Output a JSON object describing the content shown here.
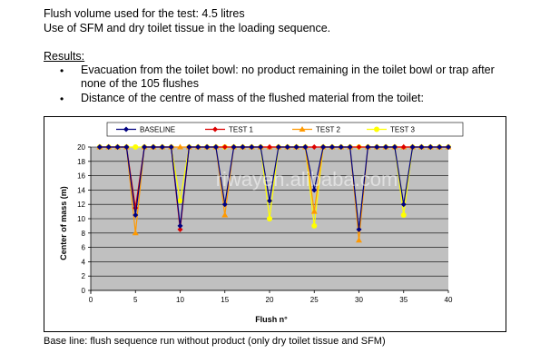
{
  "intro": {
    "line1": "Flush volume used for the test: 4.5 litres",
    "line2": "Use of SFM and dry toilet tissue in the loading sequence."
  },
  "results": {
    "heading": "Results:",
    "bullet_glyph": "•",
    "bullet1_line1": "Evacuation from the toilet bowl: no product remaining in the toilet bowl or trap after",
    "bullet1_line2": "none of the 105 flushes",
    "bullet2": "Distance of the centre of mass of the flushed material from the toilet:"
  },
  "caption": "Base line: flush sequence run without product (only dry toilet tissue and SFM)",
  "watermark": "riwayen.alibaba.com",
  "colors": {
    "plot_bg": "#c0c0c0",
    "baseline": "#000080",
    "test1": "#dd0000",
    "test2": "#ff9900",
    "test3": "#ffff00"
  },
  "chart_data": {
    "type": "line",
    "xlabel": "Flush n°",
    "ylabel": "Center of mass (m)",
    "xlim": [
      0,
      40
    ],
    "ylim": [
      0,
      20
    ],
    "x_ticks": [
      0,
      5,
      10,
      15,
      20,
      25,
      30,
      35,
      40
    ],
    "y_ticks": [
      0,
      2,
      4,
      6,
      8,
      10,
      12,
      14,
      16,
      18,
      20
    ],
    "grid": true,
    "legend_position": "top",
    "series": [
      {
        "name": "BASELINE",
        "color": "#000080",
        "marker": "diamond",
        "x": [
          1,
          2,
          3,
          4,
          5,
          6,
          7,
          8,
          9,
          10,
          11,
          12,
          13,
          14,
          15,
          16,
          17,
          18,
          19,
          20,
          21,
          22,
          23,
          24,
          25,
          26,
          27,
          28,
          29,
          30,
          31,
          32,
          33,
          34,
          35,
          36,
          37,
          38,
          39,
          40
        ],
        "y": [
          20,
          20,
          20,
          20,
          10.5,
          20,
          20,
          20,
          20,
          9,
          20,
          20,
          20,
          20,
          12,
          20,
          20,
          20,
          20,
          12.5,
          20,
          20,
          20,
          20,
          14,
          20,
          20,
          20,
          20,
          8.5,
          20,
          20,
          20,
          20,
          12,
          20,
          20,
          20,
          20,
          20
        ]
      },
      {
        "name": "TEST 1",
        "color": "#dd0000",
        "marker": "diamond",
        "x": [
          1,
          2,
          3,
          4,
          5,
          6,
          7,
          8,
          9,
          10,
          11,
          12,
          13,
          14,
          15,
          16,
          17,
          18,
          19,
          20,
          21,
          22,
          23,
          24,
          25,
          26,
          27,
          28,
          29,
          30,
          31,
          32,
          33,
          34,
          35,
          36,
          37,
          38,
          39,
          40
        ],
        "y": [
          20,
          20,
          20,
          20,
          11.5,
          20,
          20,
          20,
          20,
          8.5,
          20,
          20,
          20,
          20,
          20,
          20,
          20,
          20,
          20,
          20,
          20,
          20,
          20,
          20,
          20,
          20,
          20,
          20,
          20,
          20,
          20,
          20,
          20,
          20,
          20,
          20,
          20,
          20,
          20,
          20
        ]
      },
      {
        "name": "TEST 2",
        "color": "#ff9900",
        "marker": "triangle",
        "x": [
          1,
          2,
          3,
          4,
          5,
          6,
          7,
          8,
          9,
          10,
          11,
          12,
          13,
          14,
          15,
          16,
          17,
          18,
          19,
          20,
          21,
          22,
          23,
          24,
          25,
          26,
          27,
          28,
          29,
          30,
          31,
          32,
          33,
          34,
          35,
          36,
          37,
          38,
          39,
          40
        ],
        "y": [
          20,
          20,
          20,
          20,
          8,
          20,
          20,
          20,
          20,
          20,
          20,
          20,
          20,
          20,
          10.5,
          20,
          20,
          20,
          20,
          20,
          20,
          20,
          20,
          20,
          11,
          20,
          20,
          20,
          20,
          7,
          20,
          20,
          20,
          20,
          20,
          20,
          20,
          20,
          20,
          20
        ]
      },
      {
        "name": "TEST 3",
        "color": "#ffff00",
        "marker": "circle",
        "x": [
          1,
          2,
          3,
          4,
          5,
          6,
          7,
          8,
          9,
          10,
          11,
          12,
          13,
          14,
          15,
          16,
          17,
          18,
          19,
          20,
          21,
          22,
          23,
          24,
          25,
          26,
          27,
          28,
          29,
          30,
          31,
          32,
          33,
          34,
          35,
          36,
          37,
          38,
          39,
          40
        ],
        "y": [
          20,
          20,
          20,
          20,
          20,
          20,
          20,
          20,
          20,
          12.5,
          20,
          20,
          20,
          20,
          20,
          20,
          20,
          20,
          20,
          10,
          20,
          20,
          20,
          20,
          9,
          20,
          20,
          20,
          20,
          20,
          20,
          20,
          20,
          20,
          10.5,
          20,
          20,
          20,
          20,
          20
        ]
      }
    ]
  }
}
